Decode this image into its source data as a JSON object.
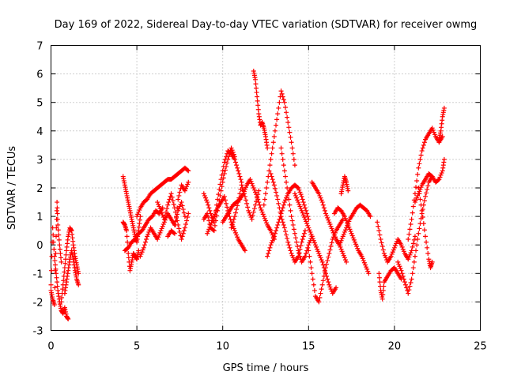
{
  "chart_data": {
    "type": "scatter",
    "title": "Day 169 of 2022, Sidereal Day-to-day VTEC variation (SDTVAR) for receiver owmg",
    "xlabel": "GPS time / hours",
    "ylabel": "SDTVAR / TECUs",
    "xlim": [
      0,
      25
    ],
    "ylim": [
      -3,
      7
    ],
    "xticks": [
      0,
      5,
      10,
      15,
      20,
      25
    ],
    "yticks": [
      -3,
      -2,
      -1,
      0,
      1,
      2,
      3,
      4,
      5,
      6,
      7
    ],
    "grid": true,
    "marker": "+",
    "color": "#ff0000",
    "series": [
      {
        "name": "SDTVAR",
        "traces": [
          {
            "x": [
              0.0,
              0.1,
              0.2,
              0.3,
              0.4,
              0.5,
              0.6,
              0.7,
              0.8,
              0.9,
              1.0
            ],
            "y": [
              -1.4,
              0.6,
              -0.4,
              -1.0,
              -1.6,
              -2.0,
              -2.3,
              -2.4,
              -2.2,
              -2.5,
              -2.6
            ]
          },
          {
            "x": [
              0.0,
              0.1,
              0.2,
              0.3,
              0.35,
              0.4,
              0.5,
              0.6
            ],
            "y": [
              -1.6,
              -1.9,
              -2.1,
              0.3,
              1.5,
              0.7,
              0.0,
              -0.6
            ]
          },
          {
            "x": [
              0.6,
              0.7,
              0.8,
              0.9,
              1.0,
              1.1,
              1.2,
              1.3,
              1.4,
              1.5,
              1.6
            ],
            "y": [
              -2.0,
              -1.4,
              -0.8,
              -0.2,
              0.3,
              0.6,
              0.5,
              0.0,
              -0.4,
              -0.7,
              -1.0
            ]
          },
          {
            "x": [
              0.8,
              0.9,
              1.0,
              1.1,
              1.2,
              1.3,
              1.4,
              1.5,
              1.6
            ],
            "y": [
              -1.7,
              -1.3,
              -0.9,
              -0.5,
              -0.2,
              -0.5,
              -0.9,
              -1.2,
              -1.4
            ]
          },
          {
            "x": [
              4.2,
              4.3,
              4.4,
              4.5,
              4.6,
              4.7,
              4.8,
              4.9,
              5.0,
              5.1,
              5.2
            ],
            "y": [
              2.4,
              2.1,
              1.8,
              1.5,
              1.2,
              0.9,
              0.6,
              0.3,
              0.1,
              0.5,
              1.0
            ]
          },
          {
            "x": [
              4.2,
              4.3,
              4.4,
              4.5,
              4.6,
              4.7,
              4.8,
              4.9,
              5.0,
              5.1
            ],
            "y": [
              0.8,
              0.7,
              0.5,
              -0.3,
              -0.9,
              -0.6,
              -0.3,
              -0.4,
              -0.5,
              -0.2
            ]
          },
          {
            "x": [
              4.3,
              4.5,
              4.7,
              4.9,
              5.1,
              5.3,
              5.5,
              5.7,
              5.9,
              6.1,
              6.3,
              6.5
            ],
            "y": [
              -0.2,
              -0.1,
              0.1,
              0.2,
              0.4,
              0.5,
              0.7,
              0.9,
              1.0,
              1.2,
              1.1,
              1.3
            ]
          },
          {
            "x": [
              5.0,
              5.2,
              5.4,
              5.6,
              5.8,
              6.0,
              6.2,
              6.4,
              6.6,
              6.8,
              7.0,
              7.2,
              7.4,
              7.6,
              7.8,
              8.0
            ],
            "y": [
              1.0,
              1.3,
              1.5,
              1.6,
              1.8,
              1.9,
              2.0,
              2.1,
              2.2,
              2.3,
              2.3,
              2.4,
              2.5,
              2.6,
              2.7,
              2.6
            ]
          },
          {
            "x": [
              5.2,
              5.4,
              5.6,
              5.8,
              6.0,
              6.2,
              6.4,
              6.6,
              6.8,
              7.0,
              7.2,
              7.4,
              7.6,
              7.8
            ],
            "y": [
              -0.4,
              -0.1,
              0.3,
              0.6,
              0.4,
              0.2,
              0.5,
              0.8,
              1.1,
              0.9,
              0.7,
              1.2,
              1.5,
              1.0
            ]
          },
          {
            "x": [
              6.2,
              6.4,
              6.6,
              6.8,
              7.0,
              7.2,
              7.4,
              7.6,
              7.8,
              8.0
            ],
            "y": [
              1.5,
              1.2,
              0.9,
              1.4,
              1.8,
              1.3,
              0.7,
              0.2,
              0.6,
              1.1
            ]
          },
          {
            "x": [
              6.8,
              7.0,
              7.2,
              7.4,
              7.6,
              7.8,
              8.0
            ],
            "y": [
              0.3,
              0.5,
              0.4,
              1.6,
              2.1,
              1.9,
              2.2
            ]
          },
          {
            "x": [
              8.9,
              9.1,
              9.3,
              9.5,
              9.7,
              9.9,
              10.1,
              10.3,
              10.5,
              10.7,
              10.9,
              11.1
            ],
            "y": [
              1.8,
              1.5,
              1.1,
              0.8,
              1.6,
              2.3,
              2.9,
              3.3,
              3.2,
              3.0,
              2.6,
              2.2
            ]
          },
          {
            "x": [
              8.9,
              9.1,
              9.3,
              9.5,
              9.7,
              9.9,
              10.1,
              10.3,
              10.5,
              10.7
            ],
            "y": [
              0.9,
              1.1,
              0.6,
              0.5,
              1.2,
              1.9,
              2.5,
              3.0,
              3.4,
              3.1
            ]
          },
          {
            "x": [
              9.1,
              9.3,
              9.5,
              9.7,
              9.9,
              10.1,
              10.3,
              10.5,
              10.7,
              10.9,
              11.1,
              11.3
            ],
            "y": [
              0.4,
              0.7,
              1.0,
              1.3,
              1.5,
              1.7,
              1.2,
              0.8,
              0.5,
              0.2,
              0.0,
              -0.2
            ]
          },
          {
            "x": [
              10.0,
              10.2,
              10.4,
              10.6,
              10.8,
              11.0,
              11.2,
              11.4,
              11.6,
              11.8,
              12.0,
              12.2,
              12.4,
              12.6,
              12.8,
              13.0
            ],
            "y": [
              0.8,
              1.0,
              1.2,
              1.4,
              1.5,
              1.6,
              1.8,
              2.1,
              2.3,
              2.0,
              1.7,
              1.3,
              1.0,
              0.7,
              0.5,
              0.2
            ]
          },
          {
            "x": [
              10.5,
              10.7,
              10.9,
              11.1,
              11.3,
              11.5,
              11.7,
              11.9,
              12.1
            ],
            "y": [
              0.6,
              1.0,
              1.5,
              2.1,
              1.7,
              1.2,
              0.9,
              1.4,
              1.9
            ]
          },
          {
            "x": [
              11.8,
              11.9,
              12.0,
              12.1,
              12.2,
              12.3,
              12.4,
              12.5,
              12.6
            ],
            "y": [
              6.1,
              5.8,
              5.2,
              4.6,
              4.2,
              4.3,
              4.1,
              3.8,
              3.4
            ]
          },
          {
            "x": [
              12.4,
              12.6,
              12.8,
              13.0,
              13.2,
              13.4,
              13.6,
              13.8,
              14.0,
              14.2
            ],
            "y": [
              1.4,
              2.2,
              3.0,
              3.8,
              4.6,
              5.4,
              5.0,
              4.3,
              3.6,
              2.8
            ]
          },
          {
            "x": [
              12.6,
              12.8,
              13.0,
              13.2,
              13.4,
              13.6,
              13.8,
              14.0,
              14.2,
              14.4,
              14.6,
              14.8,
              15.0
            ],
            "y": [
              -0.4,
              0.0,
              0.3,
              0.7,
              1.1,
              1.5,
              1.8,
              2.0,
              2.1,
              2.0,
              1.7,
              1.3,
              0.9
            ]
          },
          {
            "x": [
              12.8,
              13.0,
              13.2,
              13.4,
              13.6,
              13.8,
              14.0,
              14.2,
              14.4,
              14.6,
              14.8
            ],
            "y": [
              2.5,
              2.1,
              1.6,
              1.0,
              0.6,
              0.1,
              -0.3,
              -0.6,
              -0.4,
              0.1,
              0.5
            ]
          },
          {
            "x": [
              13.4,
              13.6,
              13.8,
              14.0,
              14.2,
              14.4,
              14.6,
              14.8,
              15.0,
              15.2
            ],
            "y": [
              3.4,
              2.6,
              1.8,
              1.0,
              0.4,
              -0.2,
              -0.6,
              -0.4,
              0.0,
              0.3
            ]
          },
          {
            "x": [
              14.2,
              14.4,
              14.6,
              14.8,
              15.0,
              15.2,
              15.4,
              15.6,
              15.8,
              16.0,
              16.2,
              16.4,
              16.6
            ],
            "y": [
              1.8,
              1.5,
              1.2,
              0.9,
              0.6,
              0.3,
              0.0,
              -0.3,
              -0.6,
              -1.0,
              -1.4,
              -1.7,
              -1.5
            ]
          },
          {
            "x": [
              15.0,
              15.2,
              15.4,
              15.6,
              15.8,
              16.0,
              16.2,
              16.4,
              16.6,
              16.8,
              17.0
            ],
            "y": [
              -0.2,
              -1.0,
              -1.8,
              -2.0,
              -1.4,
              -0.8,
              -0.3,
              0.2,
              0.5,
              0.7,
              0.9
            ]
          },
          {
            "x": [
              15.2,
              15.4,
              15.6,
              15.8,
              16.0,
              16.2,
              16.4,
              16.6,
              16.8,
              17.0,
              17.2
            ],
            "y": [
              2.2,
              2.0,
              1.8,
              1.5,
              1.1,
              0.8,
              0.5,
              0.2,
              0.0,
              -0.3,
              -0.6
            ]
          },
          {
            "x": [
              16.5,
              16.7,
              16.9,
              17.1,
              17.3,
              17.5,
              17.7,
              17.9,
              18.1,
              18.3,
              18.5
            ],
            "y": [
              1.1,
              1.3,
              1.2,
              1.0,
              0.7,
              0.4,
              0.1,
              -0.2,
              -0.4,
              -0.7,
              -1.0
            ]
          },
          {
            "x": [
              16.4,
              16.6,
              16.8,
              17.0,
              17.2,
              17.4,
              17.6,
              17.8,
              18.0,
              18.2,
              18.4,
              18.6
            ],
            "y": [
              0.5,
              0.2,
              0.0,
              0.3,
              0.6,
              0.9,
              1.1,
              1.3,
              1.4,
              1.3,
              1.2,
              1.0
            ]
          },
          {
            "x": [
              16.9,
              17.0,
              17.1,
              17.2,
              17.3
            ],
            "y": [
              1.8,
              2.1,
              2.4,
              2.2,
              1.9
            ]
          },
          {
            "x": [
              19.0,
              19.2,
              19.4,
              19.6,
              19.8,
              20.0,
              20.2,
              20.4,
              20.6,
              20.8,
              21.0,
              21.2
            ],
            "y": [
              0.8,
              0.2,
              -0.3,
              -0.6,
              -0.4,
              -0.1,
              0.2,
              0.0,
              -0.3,
              -0.5,
              -0.2,
              0.3
            ]
          },
          {
            "x": [
              19.1,
              19.2,
              19.3,
              19.4,
              19.6,
              19.8,
              20.0,
              20.2,
              20.4
            ],
            "y": [
              -1.0,
              -1.6,
              -1.9,
              -1.3,
              -1.1,
              -0.9,
              -0.8,
              -1.0,
              -1.2
            ]
          },
          {
            "x": [
              20.2,
              20.4,
              20.6,
              20.8,
              21.0,
              21.2,
              21.4,
              21.6,
              21.8,
              22.0,
              22.2
            ],
            "y": [
              -0.6,
              -0.9,
              -1.3,
              -1.7,
              -1.2,
              -0.4,
              0.4,
              1.1,
              1.7,
              2.2,
              2.4
            ]
          },
          {
            "x": [
              20.8,
              21.0,
              21.2,
              21.4,
              21.6,
              21.8,
              22.0,
              22.2,
              22.4,
              22.6,
              22.8
            ],
            "y": [
              0.2,
              0.9,
              1.8,
              2.7,
              3.3,
              3.7,
              3.9,
              4.1,
              3.8,
              3.6,
              3.8
            ]
          },
          {
            "x": [
              21.2,
              21.4,
              21.6,
              21.8,
              22.0,
              22.2,
              22.4,
              22.6,
              22.8,
              22.9
            ],
            "y": [
              1.5,
              1.8,
              2.1,
              2.3,
              2.5,
              2.4,
              2.2,
              2.3,
              2.6,
              3.0
            ]
          },
          {
            "x": [
              21.4,
              21.6,
              21.8,
              22.0,
              22.1,
              22.2
            ],
            "y": [
              2.0,
              1.2,
              0.3,
              -0.5,
              -0.8,
              -0.6
            ]
          },
          {
            "x": [
              22.6,
              22.7,
              22.8,
              22.9
            ],
            "y": [
              3.7,
              4.0,
              4.5,
              4.8
            ]
          }
        ]
      }
    ]
  }
}
